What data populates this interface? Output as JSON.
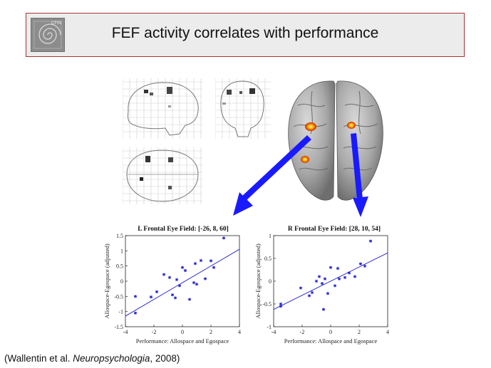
{
  "header": {
    "title": "FEF activity correlates with performance",
    "logo_text": "CFIN"
  },
  "citation": {
    "prefix": "(Wallentin et al. ",
    "journal": "Neuropsychologia",
    "suffix": ", 2008)"
  },
  "colors": {
    "header_border": "#aa3333",
    "header_bg": "#ececec",
    "arrow": "#1a1aff",
    "fit_line": "#2222cc",
    "points": "#2222cc",
    "activation": "#ff8c00"
  },
  "chart_data": [
    {
      "type": "scatter",
      "title": "L Frontal Eye Field: [-26, 8, 60]",
      "xlabel": "Performance: Allospace and Egospace",
      "ylabel": "Allospace-Egospace (adjusted)",
      "xlim": [
        -4,
        4
      ],
      "ylim": [
        -1.5,
        1.5
      ],
      "xticks": [
        -4,
        -2,
        0,
        2,
        4
      ],
      "yticks": [
        -1.5,
        -1,
        -0.5,
        0,
        0.5,
        1,
        1.5
      ],
      "points": [
        [
          -3.3,
          -1.05
        ],
        [
          -3.3,
          -0.5
        ],
        [
          -2.2,
          -0.52
        ],
        [
          -1.8,
          -0.35
        ],
        [
          -1.3,
          0.22
        ],
        [
          -0.9,
          0.12
        ],
        [
          -0.7,
          -0.45
        ],
        [
          -0.5,
          -0.55
        ],
        [
          -0.4,
          0.05
        ],
        [
          -0.2,
          -0.15
        ],
        [
          0.0,
          0.45
        ],
        [
          0.2,
          0.35
        ],
        [
          0.5,
          -0.6
        ],
        [
          0.8,
          -0.05
        ],
        [
          0.9,
          0.58
        ],
        [
          1.0,
          -0.1
        ],
        [
          1.3,
          0.68
        ],
        [
          1.6,
          0.08
        ],
        [
          2.0,
          0.67
        ],
        [
          2.2,
          0.45
        ],
        [
          2.9,
          1.42
        ]
      ],
      "fit": {
        "x": [
          -4,
          4
        ],
        "y": [
          -1.15,
          1.05
        ]
      }
    },
    {
      "type": "scatter",
      "title": "R Frontal Eye Field: [28, 10, 54]",
      "xlabel": "Performance: Allospace and Egospace",
      "ylabel": "Allospace-Egospace (adjusted)",
      "xlim": [
        -4,
        4
      ],
      "ylim": [
        -1,
        1
      ],
      "xticks": [
        -4,
        -2,
        0,
        2,
        4
      ],
      "yticks": [
        -1,
        -0.5,
        0,
        0.5,
        1
      ],
      "points": [
        [
          -3.5,
          -0.5
        ],
        [
          -3.5,
          -0.55
        ],
        [
          -2.1,
          -0.15
        ],
        [
          -1.5,
          -0.32
        ],
        [
          -1.3,
          -0.25
        ],
        [
          -1.0,
          0.0
        ],
        [
          -0.8,
          0.1
        ],
        [
          -0.6,
          -0.05
        ],
        [
          -0.5,
          -0.62
        ],
        [
          -0.4,
          0.05
        ],
        [
          -0.2,
          -0.27
        ],
        [
          0.0,
          0.3
        ],
        [
          0.3,
          -0.1
        ],
        [
          0.5,
          0.28
        ],
        [
          0.6,
          0.05
        ],
        [
          1.0,
          0.08
        ],
        [
          1.3,
          0.18
        ],
        [
          1.7,
          0.1
        ],
        [
          2.1,
          0.38
        ],
        [
          2.4,
          0.33
        ],
        [
          2.8,
          0.88
        ]
      ],
      "fit": {
        "x": [
          -4,
          4
        ],
        "y": [
          -0.62,
          0.62
        ]
      }
    }
  ]
}
